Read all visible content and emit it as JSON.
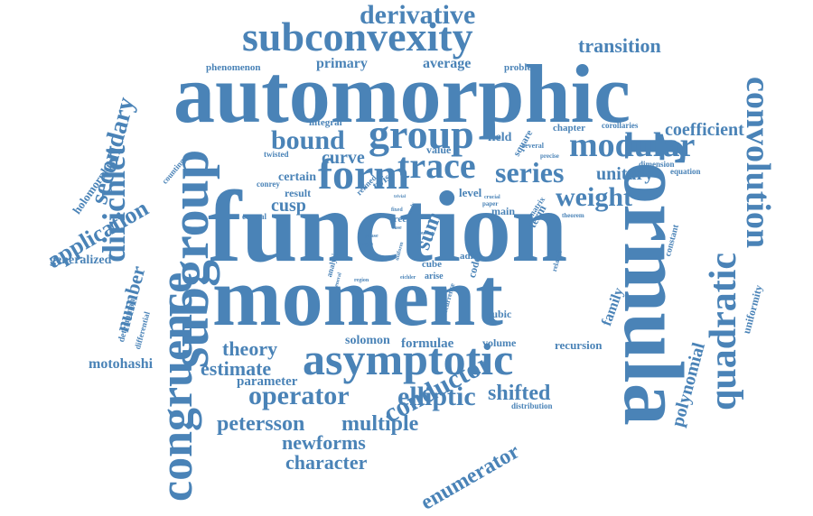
{
  "cloud": {
    "color": "#4a83b7",
    "words": [
      {
        "text": "function",
        "importance": 1.0,
        "orientation": "horizontal"
      },
      {
        "text": "moment",
        "importance": 0.85,
        "orientation": "horizontal"
      },
      {
        "text": "automorphic",
        "importance": 0.82,
        "orientation": "horizontal"
      },
      {
        "text": "formula",
        "importance": 0.82,
        "orientation": "vertical"
      },
      {
        "text": "subgroup",
        "importance": 0.66,
        "orientation": "vertical"
      },
      {
        "text": "congruence",
        "importance": 0.6,
        "orientation": "vertical"
      },
      {
        "text": "asymptotic",
        "importance": 0.55,
        "orientation": "horizontal"
      },
      {
        "text": "subconvexity",
        "importance": 0.55,
        "orientation": "horizontal"
      },
      {
        "text": "quadratic",
        "importance": 0.45,
        "orientation": "vertical"
      },
      {
        "text": "convolution",
        "importance": 0.4,
        "orientation": "vertical"
      },
      {
        "text": "form",
        "importance": 0.42,
        "orientation": "horizontal"
      },
      {
        "text": "group",
        "importance": 0.4,
        "orientation": "horizontal"
      },
      {
        "text": "trace",
        "importance": 0.38,
        "orientation": "horizontal"
      },
      {
        "text": "modular",
        "importance": 0.36,
        "orientation": "horizontal"
      },
      {
        "text": "dirichlet",
        "importance": 0.35,
        "orientation": "vertical"
      },
      {
        "text": "series",
        "importance": 0.3,
        "orientation": "horizontal"
      },
      {
        "text": "weight",
        "importance": 0.28,
        "orientation": "horizontal"
      },
      {
        "text": "derivative",
        "importance": 0.28,
        "orientation": "horizontal"
      },
      {
        "text": "bound",
        "importance": 0.27,
        "orientation": "horizontal"
      },
      {
        "text": "operator",
        "importance": 0.28,
        "orientation": "horizontal"
      },
      {
        "text": "elliptic",
        "importance": 0.27,
        "orientation": "horizontal"
      },
      {
        "text": "conductor",
        "importance": 0.28,
        "orientation": "vertical"
      },
      {
        "text": "application",
        "importance": 0.26,
        "orientation": "vertical"
      },
      {
        "text": "secondary",
        "importance": 0.25,
        "orientation": "vertical"
      },
      {
        "text": "number",
        "importance": 0.22,
        "orientation": "vertical"
      },
      {
        "text": "petersson",
        "importance": 0.22,
        "orientation": "horizontal"
      },
      {
        "text": "multiple",
        "importance": 0.22,
        "orientation": "horizontal"
      },
      {
        "text": "shifted",
        "importance": 0.22,
        "orientation": "horizontal"
      },
      {
        "text": "newforms",
        "importance": 0.2,
        "orientation": "horizontal"
      },
      {
        "text": "character",
        "importance": 0.19,
        "orientation": "horizontal"
      },
      {
        "text": "theory",
        "importance": 0.19,
        "orientation": "horizontal"
      },
      {
        "text": "estimate",
        "importance": 0.18,
        "orientation": "horizontal"
      },
      {
        "text": "enumerator",
        "importance": 0.2,
        "orientation": "vertical"
      },
      {
        "text": "polynomial",
        "importance": 0.18,
        "orientation": "vertical"
      },
      {
        "text": "transition",
        "importance": 0.19,
        "orientation": "horizontal"
      },
      {
        "text": "coefficient",
        "importance": 0.17,
        "orientation": "horizontal"
      },
      {
        "text": "unitary",
        "importance": 0.17,
        "orientation": "horizontal"
      },
      {
        "text": "curve",
        "importance": 0.17,
        "orientation": "horizontal"
      },
      {
        "text": "cusp",
        "importance": 0.16,
        "orientation": "horizontal"
      },
      {
        "text": "sum",
        "importance": 0.14,
        "orientation": "vertical"
      },
      {
        "text": "holomorphic",
        "importance": 0.12,
        "orientation": "vertical"
      },
      {
        "text": "generalized",
        "importance": 0.12,
        "orientation": "horizontal"
      },
      {
        "text": "motohashi",
        "importance": 0.13,
        "orientation": "horizontal"
      },
      {
        "text": "parameter",
        "importance": 0.12,
        "orientation": "horizontal"
      },
      {
        "text": "average",
        "importance": 0.13,
        "orientation": "horizontal"
      },
      {
        "text": "primary",
        "importance": 0.12,
        "orientation": "horizontal"
      },
      {
        "text": "certain",
        "importance": 0.11,
        "orientation": "horizontal"
      },
      {
        "text": "formulae",
        "importance": 0.12,
        "orientation": "horizontal"
      },
      {
        "text": "solomon",
        "importance": 0.11,
        "orientation": "horizontal"
      },
      {
        "text": "recursion",
        "importance": 0.1,
        "orientation": "horizontal"
      },
      {
        "text": "family",
        "importance": 0.11,
        "orientation": "vertical"
      },
      {
        "text": "uniformity",
        "importance": 0.09,
        "orientation": "vertical"
      },
      {
        "text": "volume",
        "importance": 0.09,
        "orientation": "horizontal"
      },
      {
        "text": "cubic",
        "importance": 0.09,
        "orientation": "horizontal"
      },
      {
        "text": "constant",
        "importance": 0.08,
        "orientation": "vertical"
      },
      {
        "text": "phenomenon",
        "importance": 0.08,
        "orientation": "horizontal"
      },
      {
        "text": "problem",
        "importance": 0.08,
        "orientation": "horizontal"
      },
      {
        "text": "integral",
        "importance": 0.08,
        "orientation": "horizontal"
      },
      {
        "text": "chapter",
        "importance": 0.08,
        "orientation": "horizontal"
      },
      {
        "text": "corollaries",
        "importance": 0.06,
        "orientation": "horizontal"
      },
      {
        "text": "square",
        "importance": 0.08,
        "orientation": "vertical"
      },
      {
        "text": "value",
        "importance": 0.08,
        "orientation": "horizontal"
      },
      {
        "text": "field",
        "importance": 0.1,
        "orientation": "horizontal"
      },
      {
        "text": "several",
        "importance": 0.06,
        "orientation": "horizontal"
      },
      {
        "text": "precise",
        "importance": 0.05,
        "orientation": "horizontal"
      },
      {
        "text": "dimension",
        "importance": 0.06,
        "orientation": "horizontal"
      },
      {
        "text": "equation",
        "importance": 0.07,
        "orientation": "horizontal"
      },
      {
        "text": "counting",
        "importance": 0.06,
        "orientation": "vertical"
      },
      {
        "text": "twisted",
        "importance": 0.06,
        "orientation": "horizontal"
      },
      {
        "text": "refined",
        "importance": 0.06,
        "orientation": "vertical"
      },
      {
        "text": "twist",
        "importance": 0.08,
        "orientation": "vertical"
      },
      {
        "text": "result",
        "importance": 0.09,
        "orientation": "horizontal"
      },
      {
        "text": "conrey",
        "importance": 0.06,
        "orientation": "horizontal"
      },
      {
        "text": "central",
        "importance": 0.06,
        "orientation": "horizontal"
      },
      {
        "text": "level",
        "importance": 0.09,
        "orientation": "horizontal"
      },
      {
        "text": "main",
        "importance": 0.08,
        "orientation": "horizontal"
      },
      {
        "text": "term",
        "importance": 0.09,
        "orientation": "vertical"
      },
      {
        "text": "matrix",
        "importance": 0.06,
        "orientation": "vertical"
      },
      {
        "text": "theorem",
        "importance": 0.05,
        "orientation": "horizontal"
      },
      {
        "text": "paper",
        "importance": 0.05,
        "orientation": "horizontal"
      },
      {
        "text": "crucial",
        "importance": 0.05,
        "orientation": "horizontal"
      },
      {
        "text": "trivial",
        "importance": 0.04,
        "orientation": "horizontal"
      },
      {
        "text": "free",
        "importance": 0.07,
        "orientation": "horizontal"
      },
      {
        "text": "fixed",
        "importance": 0.04,
        "orientation": "horizontal"
      },
      {
        "text": "study",
        "importance": 0.04,
        "orientation": "horizontal"
      },
      {
        "text": "case",
        "importance": 0.04,
        "orientation": "horizontal"
      },
      {
        "text": "phase",
        "importance": 0.04,
        "orientation": "horizontal"
      },
      {
        "text": "length",
        "importance": 0.04,
        "orientation": "horizontal"
      },
      {
        "text": "analytic",
        "importance": 0.06,
        "orientation": "vertical"
      },
      {
        "text": "uniform",
        "importance": 0.04,
        "orientation": "vertical"
      },
      {
        "text": "fourier",
        "importance": 0.04,
        "orientation": "horizontal"
      },
      {
        "text": "cube",
        "importance": 0.07,
        "orientation": "horizontal"
      },
      {
        "text": "arise",
        "importance": 0.06,
        "orientation": "horizontal"
      },
      {
        "text": "adic",
        "importance": 0.07,
        "orientation": "horizontal"
      },
      {
        "text": "code",
        "importance": 0.08,
        "orientation": "vertical"
      },
      {
        "text": "related",
        "importance": 0.05,
        "orientation": "vertical"
      },
      {
        "text": "region",
        "importance": 0.04,
        "orientation": "horizontal"
      },
      {
        "text": "eichler",
        "importance": 0.04,
        "orientation": "horizontal"
      },
      {
        "text": "general",
        "importance": 0.04,
        "orientation": "vertical"
      },
      {
        "text": "recurrence",
        "importance": 0.05,
        "orientation": "vertical"
      },
      {
        "text": "determinant",
        "importance": 0.05,
        "orientation": "vertical"
      },
      {
        "text": "differential",
        "importance": 0.05,
        "orientation": "vertical"
      },
      {
        "text": "distribution",
        "importance": 0.05,
        "orientation": "horizontal"
      }
    ]
  }
}
